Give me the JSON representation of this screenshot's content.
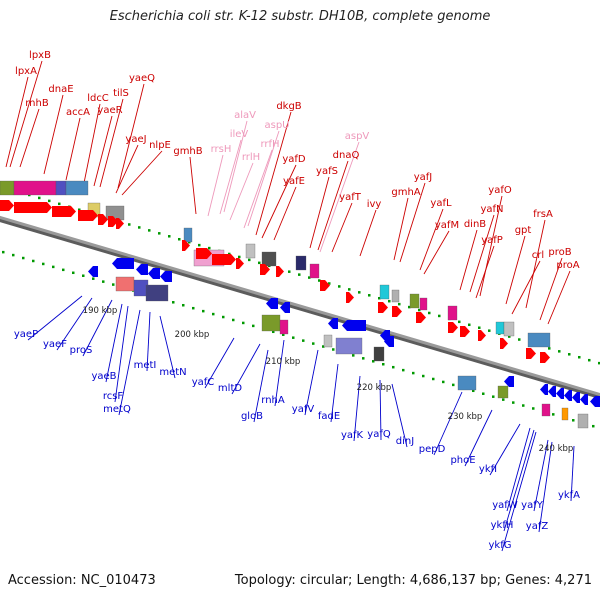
{
  "title": "Escherichia coli str. K-12 substr. DH10B, complete genome",
  "footer": {
    "accession": "Accession: NC_010473",
    "topology": "Topology: circular; Length: 4,686,137 bp; Genes: 4,271"
  },
  "colors": {
    "forward_label": "#cc0000",
    "rna_label": "#ee99bb",
    "reverse_label": "#0000cc",
    "backbone": "#808080",
    "tick": "#009900"
  },
  "kbp_labels": [
    {
      "text": "190 kbp",
      "kbp": 190
    },
    {
      "text": "200 kbp",
      "kbp": 200
    },
    {
      "text": "210 kbp",
      "kbp": 210
    },
    {
      "text": "220 kbp",
      "kbp": 220
    },
    {
      "text": "230 kbp",
      "kbp": 230
    },
    {
      "text": "240 kbp",
      "kbp": 240
    }
  ],
  "forward_genes": [
    "lpxB",
    "lpxA",
    "rnhB",
    "dnaE",
    "accA",
    "ldcC",
    "tilS",
    "yaeR",
    "yaeQ",
    "yaeJ",
    "nlpE",
    "gmhB",
    "dkgB",
    "yafD",
    "yafE",
    "yafS",
    "dnaQ",
    "yafT",
    "ivy",
    "gmhA",
    "yafJ",
    "yafL",
    "yafM",
    "dinB",
    "yafN",
    "yafO",
    "yafP",
    "gpt",
    "frsA",
    "crl",
    "proB",
    "proA"
  ],
  "rna_genes": [
    "alaV",
    "ileV",
    "rrsH",
    "rrlH",
    "aspU",
    "rrfH",
    "aspV"
  ],
  "reverse_genes": [
    "yaeP",
    "yaeF",
    "proS",
    "yaeB",
    "rcsF",
    "metQ",
    "metI",
    "metN",
    "yafC",
    "mltD",
    "gloB",
    "rnhA",
    "yafV",
    "fadE",
    "yafK",
    "yafQ",
    "dinJ",
    "pepD",
    "phoE",
    "ykfI",
    "yafW",
    "ykfH",
    "ykfG",
    "yafY",
    "yafZ",
    "ykfA"
  ]
}
